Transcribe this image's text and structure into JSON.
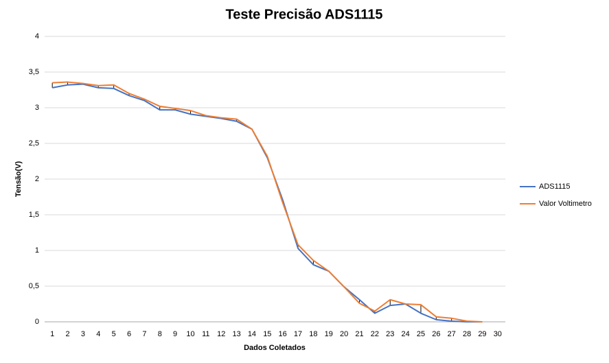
{
  "chart_data": {
    "type": "line",
    "title": "Teste Precisão ADS1115",
    "xlabel": "Dados  Coletados",
    "ylabel": "Tensão(V)",
    "categories": [
      1,
      2,
      3,
      4,
      5,
      6,
      7,
      8,
      9,
      10,
      11,
      12,
      13,
      14,
      15,
      16,
      17,
      18,
      19,
      20,
      21,
      22,
      23,
      24,
      25,
      26,
      27,
      28,
      29,
      30
    ],
    "series": [
      {
        "name": "ADS1115",
        "color": "#4472c4",
        "values": [
          3.28,
          3.32,
          3.33,
          3.28,
          3.27,
          3.17,
          3.1,
          2.97,
          2.97,
          2.91,
          2.88,
          2.85,
          2.81,
          2.7,
          2.3,
          1.71,
          1.03,
          0.8,
          0.71,
          0.49,
          0.31,
          0.12,
          0.23,
          0.25,
          0.12,
          0.03,
          0.01,
          0.0,
          0.0,
          null
        ]
      },
      {
        "name": "Valor Voltimetro",
        "color": "#ed7d31",
        "values": [
          3.35,
          3.36,
          3.34,
          3.31,
          3.32,
          3.2,
          3.12,
          3.02,
          2.99,
          2.96,
          2.89,
          2.86,
          2.84,
          2.7,
          2.32,
          1.67,
          1.08,
          0.86,
          0.71,
          0.49,
          0.26,
          0.15,
          0.31,
          0.25,
          0.24,
          0.07,
          0.05,
          0.01,
          0.0,
          null
        ]
      }
    ],
    "ylim": [
      0,
      4
    ],
    "yticks": [
      0,
      {
        "value": 0.5,
        "label": "0,5"
      },
      1,
      {
        "value": 1.5,
        "label": "1,5"
      },
      2,
      {
        "value": 2.5,
        "label": "2,5"
      },
      3,
      {
        "value": 3.5,
        "label": "3,5"
      },
      4
    ],
    "grid": true,
    "high_low_lines": true,
    "legend": "right"
  }
}
